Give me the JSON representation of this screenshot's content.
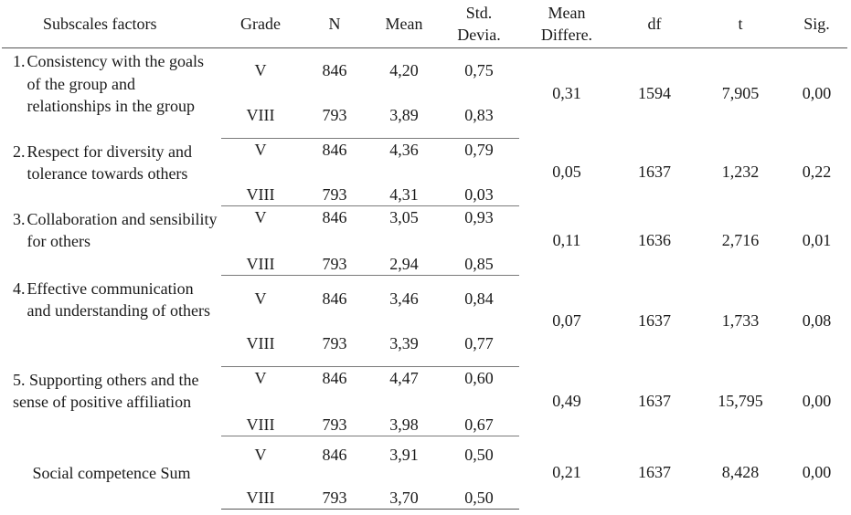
{
  "headers": {
    "factor": "Subscales factors",
    "grade": "Grade",
    "n": "N",
    "mean": "Mean",
    "std_line1": "Std.",
    "std_line2": "Devia.",
    "md_line1": "Mean",
    "md_line2": "Differe.",
    "df": "df",
    "t": "t",
    "sig": "Sig."
  },
  "rows": [
    {
      "num": "1.",
      "label": "Consistency with the goals of the group and relationships in the group",
      "g1": {
        "grade": "V",
        "n": "846",
        "mean": "4,20",
        "std": "0,75"
      },
      "g2": {
        "grade": "VIII",
        "n": "793",
        "mean": "3,89",
        "std": "0,83"
      },
      "md": "0,31",
      "df": "1594",
      "t": "7,905",
      "sig": "0,00"
    },
    {
      "num": "2.",
      "label": "Respect for diversity and tolerance towards others",
      "g1": {
        "grade": "V",
        "n": "846",
        "mean": "4,36",
        "std": "0,79"
      },
      "g2": {
        "grade": "VIII",
        "n": "793",
        "mean": "4,31",
        "std": "0,03"
      },
      "md": "0,05",
      "df": "1637",
      "t": "1,232",
      "sig": "0,22"
    },
    {
      "num": "3.",
      "label": "Collaboration and sensibility for others",
      "g1": {
        "grade": "V",
        "n": "846",
        "mean": "3,05",
        "std": "0,93"
      },
      "g2": {
        "grade": "VIII",
        "n": "793",
        "mean": "2,94",
        "std": "0,85"
      },
      "md": "0,11",
      "df": "1636",
      "t": "2,716",
      "sig": "0,01"
    },
    {
      "num": "4.",
      "label": "Effective communication and understanding of others",
      "g1": {
        "grade": "V",
        "n": "846",
        "mean": "3,46",
        "std": "0,84"
      },
      "g2": {
        "grade": "VIII",
        "n": "793",
        "mean": "3,39",
        "std": "0,77"
      },
      "md": "0,07",
      "df": "1637",
      "t": "1,733",
      "sig": "0,08"
    },
    {
      "label": "5. Supporting others and the sense of positive affiliation",
      "g1": {
        "grade": "V",
        "n": "846",
        "mean": "4,47",
        "std": "0,60"
      },
      "g2": {
        "grade": "VIII",
        "n": "793",
        "mean": "3,98",
        "std": "0,67"
      },
      "md": "0,49",
      "df": "1637",
      "t": "15,795",
      "sig": "0,00"
    },
    {
      "label": "Social competence Sum",
      "g1": {
        "grade": "V",
        "n": "846",
        "mean": "3,91",
        "std": "0,50"
      },
      "g2": {
        "grade": "VIII",
        "n": "793",
        "mean": "3,70",
        "std": "0,50"
      },
      "md": "0,21",
      "df": "1637",
      "t": "8,428",
      "sig": "0,00"
    }
  ]
}
